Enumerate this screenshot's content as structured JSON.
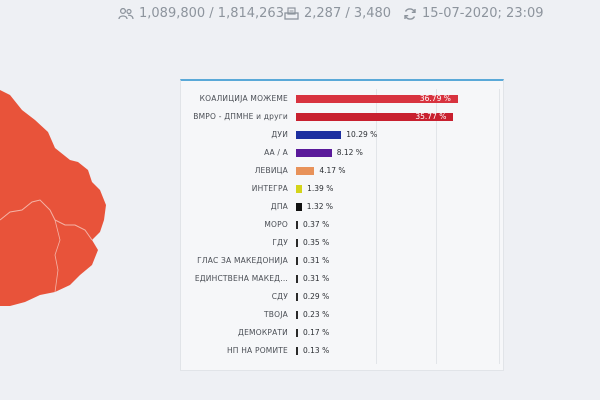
{
  "header": {
    "voters": "1,089,800 / 1,814,263",
    "stations": "2,287 / 3,480",
    "updated": "15-07-2020; 23:09",
    "icons": [
      "people-icon",
      "ballot-box-icon",
      "refresh-icon"
    ]
  },
  "map": {
    "region_color": "#e8533a",
    "border_color": "#f4b3a6"
  },
  "results": {
    "accent": "#5aa9d8",
    "max_percent": 40,
    "rows": [
      {
        "name": "КОАЛИЦИЈА МОЖЕМЕ",
        "value_text": "36.79 %",
        "percent": 36.79,
        "color": "#d8333f"
      },
      {
        "name": "ВМРО - ДПМНЕ и други",
        "value_text": "35.77 %",
        "percent": 35.77,
        "color": "#c8202f"
      },
      {
        "name": "ДУИ",
        "value_text": "10.29 %",
        "percent": 10.29,
        "color": "#1c2fa0"
      },
      {
        "name": "АА / А",
        "value_text": "8.12 %",
        "percent": 8.12,
        "color": "#5a1a9a"
      },
      {
        "name": "ЛЕВИЦА",
        "value_text": "4.17 %",
        "percent": 4.17,
        "color": "#e8925a"
      },
      {
        "name": "ИНТЕГРА",
        "value_text": "1.39 %",
        "percent": 1.39,
        "color": "#d4d41a"
      },
      {
        "name": "ДПА",
        "value_text": "1.32 %",
        "percent": 1.32,
        "color": "#111111"
      },
      {
        "name": "МОРО",
        "value_text": "0.37 %",
        "percent": 0.37,
        "color": "#2a2a2a"
      },
      {
        "name": "ГДУ",
        "value_text": "0.35 %",
        "percent": 0.35,
        "color": "#2a2a2a"
      },
      {
        "name": "ГЛАС ЗА МАКЕДОНИЈА",
        "value_text": "0.31 %",
        "percent": 0.31,
        "color": "#2a2a2a"
      },
      {
        "name": "ЕДИНСТВЕНА МАКЕД...",
        "value_text": "0.31 %",
        "percent": 0.31,
        "color": "#2a2a2a"
      },
      {
        "name": "СДУ",
        "value_text": "0.29 %",
        "percent": 0.29,
        "color": "#2a2a2a"
      },
      {
        "name": "ТВОЈА",
        "value_text": "0.23 %",
        "percent": 0.23,
        "color": "#2a2a2a"
      },
      {
        "name": "ДЕМОКРАТИ",
        "value_text": "0.17 %",
        "percent": 0.17,
        "color": "#2a2a2a"
      },
      {
        "name": "НП НА РОМИТЕ",
        "value_text": "0.13 %",
        "percent": 0.13,
        "color": "#2a2a2a"
      }
    ]
  }
}
